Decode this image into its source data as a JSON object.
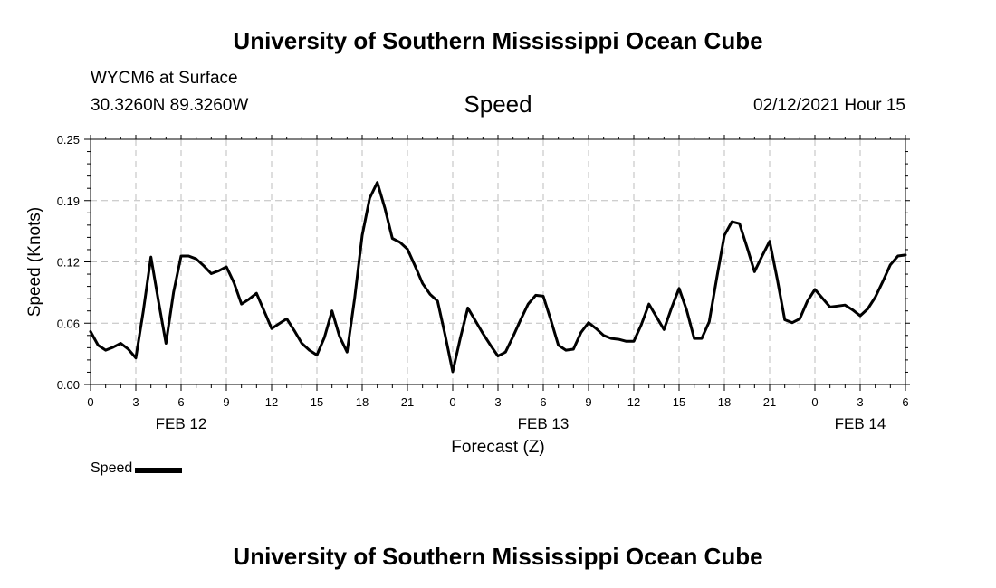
{
  "header_title": "University of Southern Mississippi Ocean Cube",
  "footer_title": "University of Southern Mississippi Ocean Cube",
  "station": "WYCM6 at Surface",
  "location": "30.3260N 89.3260W",
  "timestamp": "02/12/2021 Hour 15",
  "chart_data": {
    "type": "line",
    "title": "Speed",
    "xlabel": "Forecast (Z)",
    "ylabel": "Speed (Knots)",
    "ylim": [
      0,
      0.25
    ],
    "y_ticks": [
      "0.00",
      "0.06",
      "0.12",
      "0.19",
      "0.25"
    ],
    "x_ticks": [
      "0",
      "3",
      "6",
      "9",
      "12",
      "15",
      "18",
      "21",
      "0",
      "3",
      "6",
      "9",
      "12",
      "15",
      "18",
      "21",
      "0",
      "3",
      "6"
    ],
    "date_labels": [
      {
        "label": "FEB 12",
        "hour": 6
      },
      {
        "label": "FEB 13",
        "hour": 30
      },
      {
        "label": "FEB 14",
        "hour": 51
      }
    ],
    "grid": true,
    "line_color": "#000000",
    "series": [
      {
        "name": "Speed",
        "x": [
          0,
          0.5,
          1,
          1.5,
          2,
          2.5,
          3,
          3.5,
          4,
          4.5,
          5,
          5.5,
          6,
          6.5,
          7,
          7.5,
          8,
          8.5,
          9,
          9.5,
          10,
          10.5,
          11,
          11.5,
          12,
          12.5,
          13,
          13.5,
          14,
          14.5,
          15,
          15.5,
          16,
          16.5,
          17,
          17.5,
          18,
          18.5,
          19,
          19.5,
          20,
          20.5,
          21,
          21.5,
          22,
          22.5,
          23,
          23.5,
          24,
          24.5,
          25,
          25.5,
          26,
          26.5,
          27,
          27.5,
          28,
          28.5,
          29,
          29.5,
          30,
          30.5,
          31,
          31.5,
          32,
          32.5,
          33,
          33.5,
          34,
          34.5,
          35,
          35.5,
          36,
          36.5,
          37,
          37.5,
          38,
          38.5,
          39,
          39.5,
          40,
          40.5,
          41,
          41.5,
          42,
          42.5,
          43,
          43.5,
          44,
          44.5,
          45,
          45.5,
          46,
          46.5,
          47,
          47.5,
          48,
          48.5,
          49,
          49.5,
          50,
          50.5,
          51,
          51.5,
          52,
          52.5,
          53,
          53.5,
          54
        ],
        "values": [
          0.054,
          0.04,
          0.035,
          0.038,
          0.042,
          0.036,
          0.027,
          0.075,
          0.13,
          0.085,
          0.042,
          0.094,
          0.131,
          0.131,
          0.128,
          0.121,
          0.113,
          0.116,
          0.12,
          0.104,
          0.082,
          0.087,
          0.093,
          0.075,
          0.057,
          0.062,
          0.067,
          0.055,
          0.042,
          0.035,
          0.03,
          0.048,
          0.075,
          0.049,
          0.033,
          0.088,
          0.152,
          0.19,
          0.206,
          0.18,
          0.149,
          0.145,
          0.138,
          0.121,
          0.103,
          0.092,
          0.085,
          0.05,
          0.013,
          0.047,
          0.078,
          0.065,
          0.052,
          0.04,
          0.029,
          0.033,
          0.049,
          0.066,
          0.082,
          0.091,
          0.09,
          0.066,
          0.04,
          0.035,
          0.036,
          0.053,
          0.063,
          0.057,
          0.05,
          0.047,
          0.046,
          0.044,
          0.044,
          0.061,
          0.082,
          0.069,
          0.056,
          0.078,
          0.098,
          0.076,
          0.047,
          0.047,
          0.064,
          0.109,
          0.152,
          0.166,
          0.164,
          0.14,
          0.115,
          0.131,
          0.146,
          0.108,
          0.066,
          0.063,
          0.067,
          0.085,
          0.097,
          0.088,
          0.079,
          0.08,
          0.081,
          0.076,
          0.07,
          0.077,
          0.089,
          0.105,
          0.122,
          0.131,
          0.132
        ]
      }
    ],
    "legend": {
      "label": "Speed",
      "position": "bottom-left"
    }
  }
}
